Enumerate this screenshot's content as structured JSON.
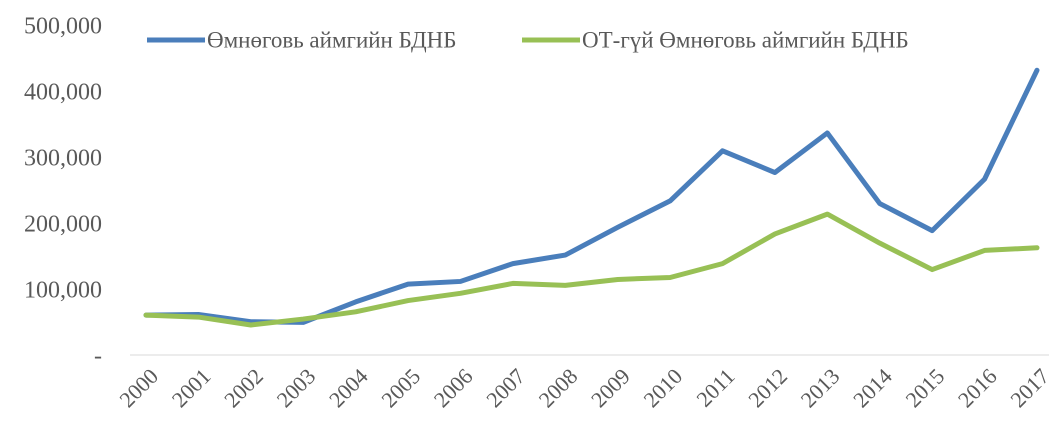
{
  "chart_data": {
    "type": "line",
    "categories": [
      "2000",
      "2001",
      "2002",
      "2003",
      "2004",
      "2005",
      "2006",
      "2007",
      "2008",
      "2009",
      "2010",
      "2011",
      "2012",
      "2013",
      "2014",
      "2015",
      "2016",
      "2017"
    ],
    "series": [
      {
        "name": "Өмнөговь аймгийн БДНБ",
        "color": "#4a7ebb",
        "values": [
          65000,
          66000,
          55000,
          54000,
          85000,
          112000,
          116000,
          143000,
          156000,
          198000,
          238000,
          314000,
          281000,
          341000,
          234000,
          193000,
          271000,
          436000
        ]
      },
      {
        "name": "ОТ-гүй Өмнөговь аймгийн БДНБ",
        "color": "#98c055",
        "values": [
          65000,
          62000,
          50000,
          59000,
          70000,
          87000,
          98000,
          113000,
          110000,
          119000,
          122000,
          143000,
          188000,
          218000,
          174000,
          134000,
          163000,
          167000
        ]
      }
    ],
    "ylim": [
      0,
      500000
    ],
    "yticks": [
      {
        "value": 0,
        "label": "-"
      },
      {
        "value": 100000,
        "label": "100,000"
      },
      {
        "value": 200000,
        "label": "200,000"
      },
      {
        "value": 300000,
        "label": "300,000"
      },
      {
        "value": 400000,
        "label": "400,000"
      },
      {
        "value": 500000,
        "label": "500,000"
      }
    ],
    "legend": "top"
  }
}
